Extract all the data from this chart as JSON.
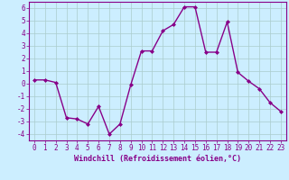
{
  "x": [
    0,
    1,
    2,
    3,
    4,
    5,
    6,
    7,
    8,
    9,
    10,
    11,
    12,
    13,
    14,
    15,
    16,
    17,
    18,
    19,
    20,
    21,
    22,
    23
  ],
  "y": [
    0.3,
    0.3,
    0.1,
    -2.7,
    -2.8,
    -3.2,
    -1.8,
    -4.0,
    -3.2,
    -0.1,
    2.6,
    2.6,
    4.2,
    4.7,
    6.1,
    6.1,
    2.5,
    2.5,
    4.9,
    0.9,
    0.2,
    -0.4,
    -1.5,
    -2.2
  ],
  "line_color": "#880088",
  "marker": "D",
  "marker_size": 2.0,
  "bg_color": "#cceeff",
  "grid_color": "#aacccc",
  "axis_color": "#880088",
  "xlabel": "Windchill (Refroidissement éolien,°C)",
  "ylabel": "",
  "title": "",
  "xlim": [
    -0.5,
    23.5
  ],
  "ylim": [
    -4.5,
    6.5
  ],
  "yticks": [
    -4,
    -3,
    -2,
    -1,
    0,
    1,
    2,
    3,
    4,
    5,
    6
  ],
  "xticks": [
    0,
    1,
    2,
    3,
    4,
    5,
    6,
    7,
    8,
    9,
    10,
    11,
    12,
    13,
    14,
    15,
    16,
    17,
    18,
    19,
    20,
    21,
    22,
    23
  ],
  "font_color": "#880088",
  "linewidth": 1.0,
  "tick_fontsize": 5.5,
  "xlabel_fontsize": 6.0
}
